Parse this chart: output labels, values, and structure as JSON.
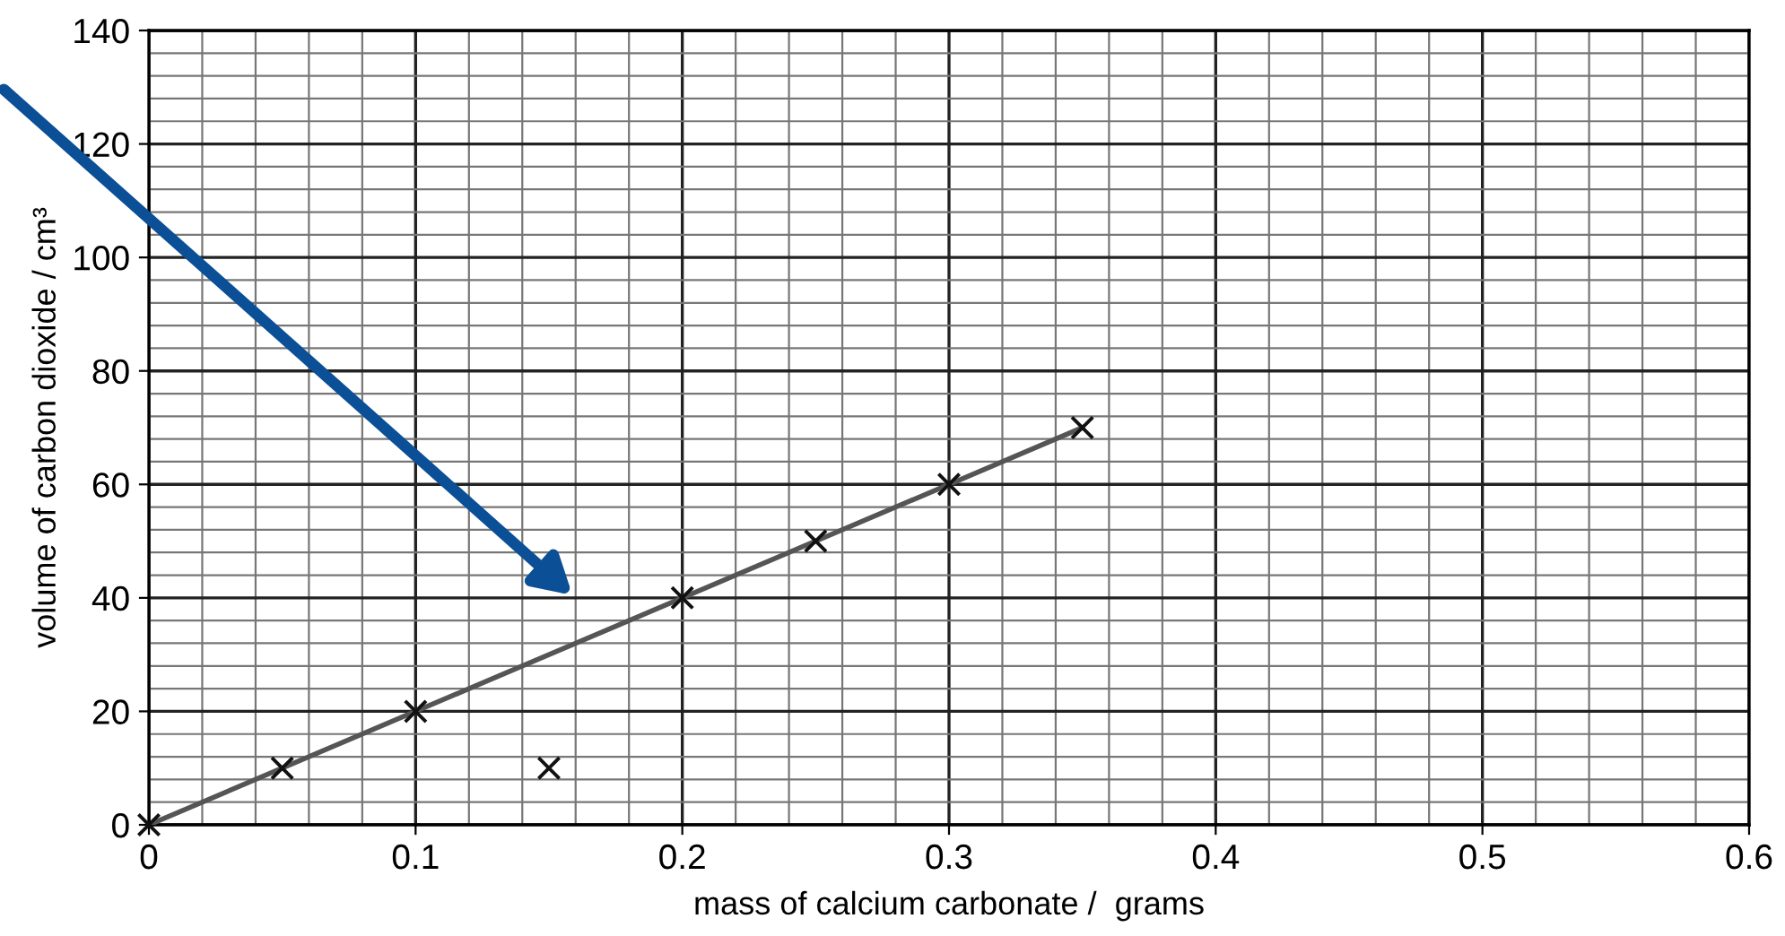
{
  "chart_data": {
    "type": "scatter",
    "xlabel": "mass of calcium carbonate /  grams",
    "ylabel": "volume of carbon dioxide / cm³",
    "series": [
      {
        "color": "#111111",
        "marker": "cross",
        "x": [
          0,
          0.05,
          0.1,
          0.15,
          0.2,
          0.25,
          0.3,
          0.35
        ],
        "values": [
          0,
          10,
          20,
          10,
          40,
          50,
          60,
          70
        ]
      },
      {
        "type": "line",
        "color": "#555555",
        "marker": "none",
        "x": [
          0,
          0.35
        ],
        "values": [
          0,
          70
        ]
      }
    ],
    "xlim": [
      0,
      0.6
    ],
    "xticks": [
      0,
      0.1,
      0.2,
      0.3,
      0.4,
      0.5,
      0.6
    ],
    "ylim": [
      0,
      140
    ],
    "yticks": [
      0,
      20,
      40,
      60,
      80,
      100,
      120,
      140
    ],
    "grid": true
  }
}
